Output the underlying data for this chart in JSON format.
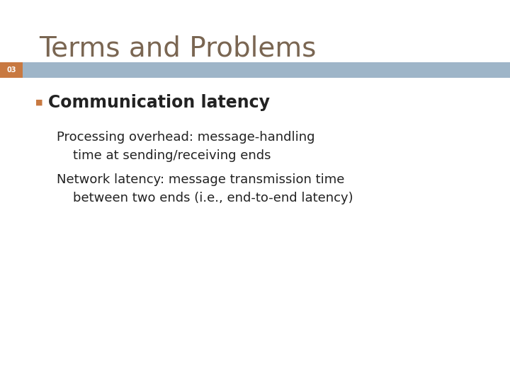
{
  "title": "Terms and Problems",
  "title_color": "#7a6652",
  "title_fontsize": 28,
  "slide_number": "03",
  "slide_number_color": "#ffffff",
  "slide_number_bg": "#c87941",
  "banner_color": "#9eb5c8",
  "bullet_marker": "■",
  "bullet_text": "Communication latency",
  "bullet_marker_color": "#c87941",
  "bullet_color": "#222222",
  "bullet_fontsize": 17,
  "sub_items": [
    "Processing overhead: message-handling\n    time at sending/receiving ends",
    "Network latency: message transmission time\n    between two ends (i.e., end-to-end latency)"
  ],
  "sub_color": "#222222",
  "sub_fontsize": 13,
  "background_color": "#ffffff"
}
